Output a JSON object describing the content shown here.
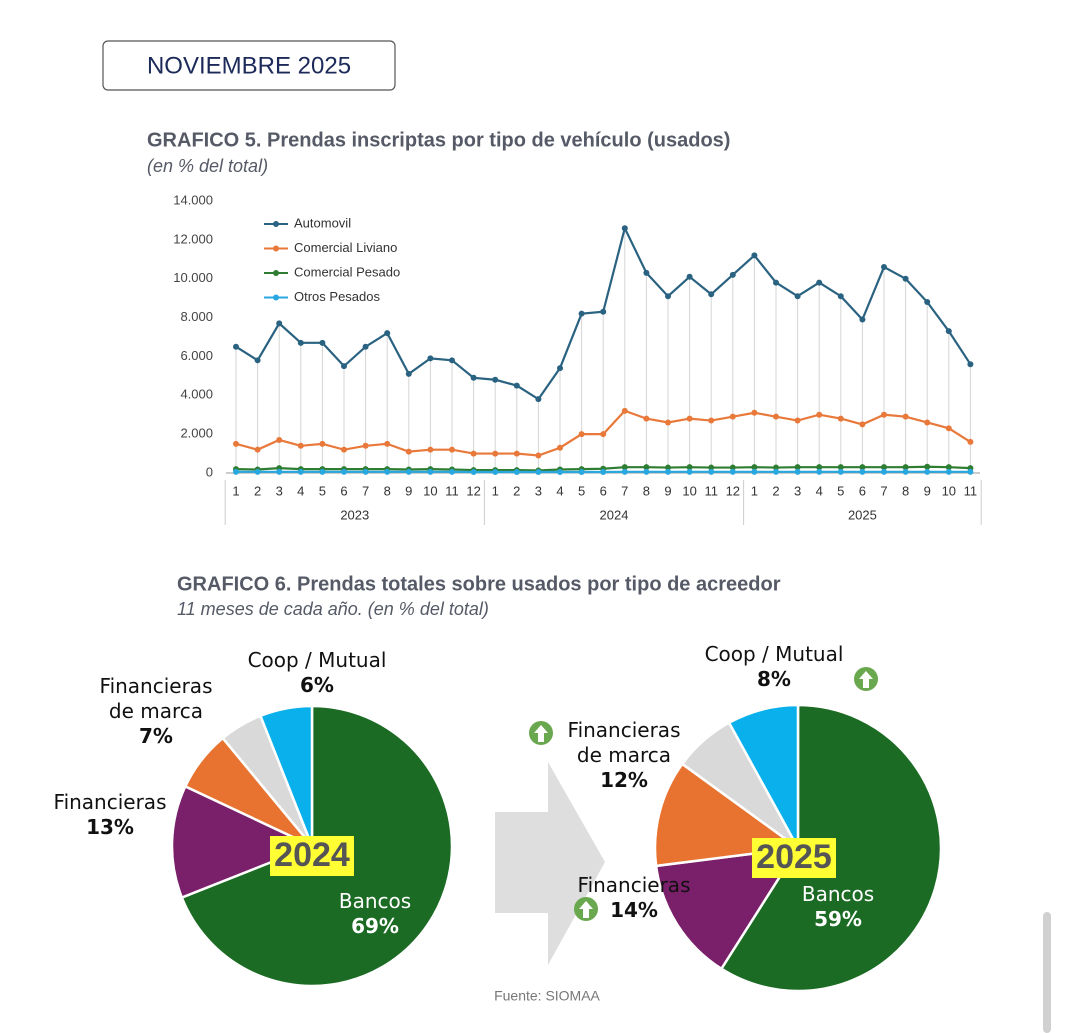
{
  "header": "NOVIEMBRE 2025",
  "source": "Fuente: SIOMAA",
  "chart_data": [
    {
      "type": "line",
      "title": "GRAFICO 5. Prendas inscriptas por tipo de vehículo (usados)",
      "subtitle": "(en % del total)",
      "categories": [
        "1",
        "2",
        "3",
        "4",
        "5",
        "6",
        "7",
        "8",
        "9",
        "10",
        "11",
        "12",
        "1",
        "2",
        "3",
        "4",
        "5",
        "6",
        "7",
        "8",
        "9",
        "10",
        "11",
        "12",
        "1",
        "2",
        "3",
        "4",
        "5",
        "6",
        "7",
        "8",
        "9",
        "10",
        "11"
      ],
      "x_groups": [
        "2023",
        "2024",
        "2025"
      ],
      "ylim": [
        0,
        14000
      ],
      "yticks": [
        0,
        {
          "value": 2000,
          "label": "2.000"
        },
        {
          "value": 4000,
          "label": "4.000"
        },
        {
          "value": 6000,
          "label": "6.000"
        },
        {
          "value": 8000,
          "label": "8.000"
        },
        {
          "value": 10000,
          "label": "10.000"
        },
        {
          "value": 12000,
          "label": "12.000"
        },
        {
          "value": 14000,
          "label": "14.000"
        }
      ],
      "grid": false,
      "droplines": true,
      "legend": "top-left",
      "series": [
        {
          "name": "Automovil",
          "color": "#2a6281",
          "values": [
            6500,
            5800,
            7700,
            6700,
            6700,
            5500,
            6500,
            7200,
            5100,
            5900,
            5800,
            4900,
            4800,
            4500,
            3800,
            5400,
            8200,
            8300,
            12600,
            10300,
            9100,
            10100,
            9200,
            10200,
            11200,
            9800,
            9100,
            9800,
            9100,
            7900,
            10600,
            10000,
            8800,
            7300,
            5600
          ]
        },
        {
          "name": "Comercial Liviano",
          "color": "#e8793a",
          "values": [
            1500,
            1200,
            1700,
            1400,
            1500,
            1200,
            1400,
            1500,
            1100,
            1200,
            1200,
            1000,
            1000,
            1000,
            900,
            1300,
            2000,
            2000,
            3200,
            2800,
            2600,
            2800,
            2700,
            2900,
            3100,
            2900,
            2700,
            3000,
            2800,
            2500,
            3000,
            2900,
            2600,
            2300,
            1600
          ]
        },
        {
          "name": "Comercial Pesado",
          "color": "#2e7d32",
          "values": [
            200,
            180,
            250,
            200,
            200,
            200,
            200,
            200,
            180,
            200,
            180,
            150,
            150,
            150,
            130,
            180,
            200,
            220,
            300,
            300,
            280,
            300,
            280,
            280,
            300,
            280,
            300,
            300,
            300,
            300,
            300,
            300,
            320,
            300,
            250
          ]
        },
        {
          "name": "Otros Pesados",
          "color": "#29a8e0",
          "values": [
            60,
            60,
            60,
            60,
            60,
            60,
            60,
            60,
            60,
            60,
            60,
            50,
            50,
            50,
            50,
            50,
            50,
            50,
            60,
            60,
            60,
            60,
            60,
            60,
            60,
            60,
            60,
            60,
            60,
            60,
            60,
            60,
            60,
            60,
            60
          ]
        }
      ]
    },
    {
      "type": "pie",
      "title": "GRAFICO 6. Prendas totales sobre usados por tipo de acreedor",
      "subtitle": "11 meses de cada año. (en % del total)",
      "label": "2024",
      "categories": [
        "Bancos",
        "Financieras",
        "Financieras de marca",
        null,
        "Coop / Mutual"
      ],
      "values": [
        69,
        13,
        7,
        5,
        6
      ],
      "value_labels": [
        "69%",
        "13%",
        "7%",
        null,
        "6%"
      ],
      "colors": [
        "#1b6b24",
        "#7a1f6a",
        "#e87330",
        "#d9d9d9",
        "#0ab0ec"
      ]
    },
    {
      "type": "pie",
      "label": "2025",
      "categories": [
        "Bancos",
        "Financieras",
        "Financieras de marca",
        null,
        "Coop / Mutual"
      ],
      "values": [
        59,
        14,
        12,
        7,
        8
      ],
      "value_labels": [
        "59%",
        "14%",
        "12%",
        null,
        "8%"
      ],
      "colors": [
        "#1b6b24",
        "#7a1f6a",
        "#e87330",
        "#d9d9d9",
        "#0ab0ec"
      ]
    }
  ]
}
